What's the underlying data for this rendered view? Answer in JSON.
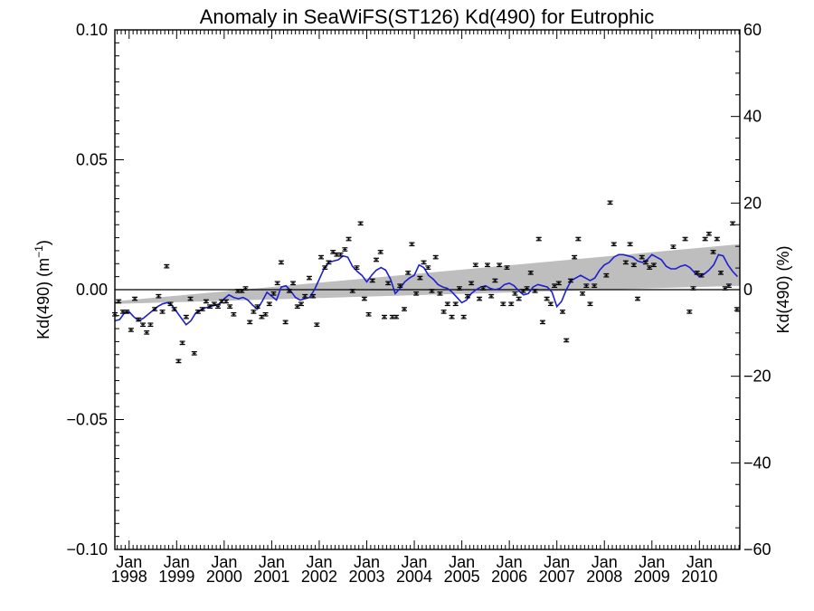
{
  "chart_data": {
    "type": "scatter",
    "title": "Anomaly in SeaWiFS(ST126) Kd(490) for Eutrophic",
    "ylabel_left": "Kd(490) (m",
    "ylabel_left_sup": "−1",
    "ylabel_left_tail": ")",
    "ylabel_right": "Kd(490) (%)",
    "x_range": [
      1997.7,
      2010.85
    ],
    "ylim_left": [
      -0.1,
      0.1
    ],
    "ylim_right": [
      -60,
      60
    ],
    "x_ticks": [
      {
        "year": 1998,
        "month_label": "Jan",
        "year_label": "1998"
      },
      {
        "year": 1999,
        "month_label": "Jan",
        "year_label": "1999"
      },
      {
        "year": 2000,
        "month_label": "Jan",
        "year_label": "2000"
      },
      {
        "year": 2001,
        "month_label": "Jan",
        "year_label": "2001"
      },
      {
        "year": 2002,
        "month_label": "Jan",
        "year_label": "2002"
      },
      {
        "year": 2003,
        "month_label": "Jan",
        "year_label": "2003"
      },
      {
        "year": 2004,
        "month_label": "Jan",
        "year_label": "2004"
      },
      {
        "year": 2005,
        "month_label": "Jan",
        "year_label": "2005"
      },
      {
        "year": 2006,
        "month_label": "Jan",
        "year_label": "2006"
      },
      {
        "year": 2007,
        "month_label": "Jan",
        "year_label": "2007"
      },
      {
        "year": 2008,
        "month_label": "Jan",
        "year_label": "2008"
      },
      {
        "year": 2009,
        "month_label": "Jan",
        "year_label": "2009"
      },
      {
        "year": 2010,
        "month_label": "Jan",
        "year_label": "2010"
      }
    ],
    "y_ticks_left": [
      {
        "value": 0.1,
        "label": "0.10"
      },
      {
        "value": 0.05,
        "label": "0.05"
      },
      {
        "value": 0.0,
        "label": "0.00"
      },
      {
        "value": -0.05,
        "label": "−0.05"
      },
      {
        "value": -0.1,
        "label": "−0.10"
      }
    ],
    "y_ticks_right": [
      {
        "value": 60,
        "label": "60"
      },
      {
        "value": 40,
        "label": "40"
      },
      {
        "value": 20,
        "label": "20"
      },
      {
        "value": 0,
        "label": "0"
      },
      {
        "value": -20,
        "label": "−20"
      },
      {
        "value": -40,
        "label": "−40"
      },
      {
        "value": -60,
        "label": "−60"
      }
    ],
    "trend_band": {
      "x": [
        1997.7,
        2010.85
      ],
      "upper": [
        -0.0045,
        0.0175
      ],
      "lower": [
        -0.0055,
        0.0015
      ],
      "color": "#bebebe"
    },
    "zero_line": 0.0,
    "points": [
      {
        "x": 1997.7,
        "y": -0.0095
      },
      {
        "x": 1997.78,
        "y": -0.0045
      },
      {
        "x": 1997.87,
        "y": -0.0085
      },
      {
        "x": 1997.95,
        "y": -0.0085
      },
      {
        "x": 1998.04,
        "y": -0.0155
      },
      {
        "x": 1998.12,
        "y": -0.0035
      },
      {
        "x": 1998.2,
        "y": -0.0115
      },
      {
        "x": 1998.29,
        "y": -0.0135
      },
      {
        "x": 1998.37,
        "y": -0.0165
      },
      {
        "x": 1998.45,
        "y": -0.0135
      },
      {
        "x": 1998.54,
        "y": -0.0075
      },
      {
        "x": 1998.62,
        "y": -0.0025
      },
      {
        "x": 1998.7,
        "y": -0.0085
      },
      {
        "x": 1998.79,
        "y": 0.009
      },
      {
        "x": 1998.87,
        "y": -0.0055
      },
      {
        "x": 1998.95,
        "y": -0.0075
      },
      {
        "x": 1999.04,
        "y": -0.0275
      },
      {
        "x": 1999.12,
        "y": -0.0205
      },
      {
        "x": 1999.2,
        "y": -0.0105
      },
      {
        "x": 1999.29,
        "y": -0.0035
      },
      {
        "x": 1999.37,
        "y": -0.0245
      },
      {
        "x": 1999.45,
        "y": -0.0085
      },
      {
        "x": 1999.54,
        "y": -0.0075
      },
      {
        "x": 1999.62,
        "y": -0.0045
      },
      {
        "x": 1999.7,
        "y": -0.0065
      },
      {
        "x": 1999.79,
        "y": -0.0055
      },
      {
        "x": 1999.87,
        "y": -0.0065
      },
      {
        "x": 1999.95,
        "y": -0.0045
      },
      {
        "x": 2000.04,
        "y": -0.0045
      },
      {
        "x": 2000.12,
        "y": -0.0065
      },
      {
        "x": 2000.2,
        "y": -0.0095
      },
      {
        "x": 2000.29,
        "y": -0.0005
      },
      {
        "x": 2000.37,
        "y": -0.0005
      },
      {
        "x": 2000.45,
        "y": 0.0005
      },
      {
        "x": 2000.54,
        "y": -0.0125
      },
      {
        "x": 2000.62,
        "y": -0.0085
      },
      {
        "x": 2000.7,
        "y": -0.0065
      },
      {
        "x": 2000.79,
        "y": -0.0105
      },
      {
        "x": 2000.87,
        "y": -0.0095
      },
      {
        "x": 2000.95,
        "y": -0.0055
      },
      {
        "x": 2001.04,
        "y": -0.0015
      },
      {
        "x": 2001.12,
        "y": 0.0025
      },
      {
        "x": 2001.2,
        "y": 0.0105
      },
      {
        "x": 2001.29,
        "y": -0.0125
      },
      {
        "x": 2001.37,
        "y": -0.0005
      },
      {
        "x": 2001.45,
        "y": 0.0025
      },
      {
        "x": 2001.54,
        "y": -0.0065
      },
      {
        "x": 2001.62,
        "y": -0.0055
      },
      {
        "x": 2001.7,
        "y": -0.0025
      },
      {
        "x": 2001.79,
        "y": 0.0045
      },
      {
        "x": 2001.87,
        "y": -0.0025
      },
      {
        "x": 2001.95,
        "y": -0.0135
      },
      {
        "x": 2002.04,
        "y": 0.0125
      },
      {
        "x": 2002.12,
        "y": 0.0085
      },
      {
        "x": 2002.2,
        "y": 0.0105
      },
      {
        "x": 2002.29,
        "y": 0.0145
      },
      {
        "x": 2002.37,
        "y": 0.0135
      },
      {
        "x": 2002.45,
        "y": 0.0135
      },
      {
        "x": 2002.54,
        "y": 0.0155
      },
      {
        "x": 2002.62,
        "y": 0.0195
      },
      {
        "x": 2002.7,
        "y": -0.0005
      },
      {
        "x": 2002.79,
        "y": 0.0085
      },
      {
        "x": 2002.87,
        "y": 0.0255
      },
      {
        "x": 2002.95,
        "y": -0.0035
      },
      {
        "x": 2003.04,
        "y": -0.0095
      },
      {
        "x": 2003.12,
        "y": 0.0035
      },
      {
        "x": 2003.2,
        "y": 0.0115
      },
      {
        "x": 2003.29,
        "y": 0.0145
      },
      {
        "x": 2003.37,
        "y": -0.0105
      },
      {
        "x": 2003.45,
        "y": 0.0025
      },
      {
        "x": 2003.54,
        "y": -0.0105
      },
      {
        "x": 2003.62,
        "y": -0.0105
      },
      {
        "x": 2003.7,
        "y": 0.0015
      },
      {
        "x": 2003.79,
        "y": -0.0075
      },
      {
        "x": 2003.87,
        "y": 0.0065
      },
      {
        "x": 2003.95,
        "y": 0.0175
      },
      {
        "x": 2004.04,
        "y": -0.0015
      },
      {
        "x": 2004.12,
        "y": 0.0045
      },
      {
        "x": 2004.2,
        "y": 0.0105
      },
      {
        "x": 2004.29,
        "y": 0.0085
      },
      {
        "x": 2004.37,
        "y": -0.0005
      },
      {
        "x": 2004.45,
        "y": 0.0125
      },
      {
        "x": 2004.54,
        "y": -0.0015
      },
      {
        "x": 2004.62,
        "y": -0.0085
      },
      {
        "x": 2004.7,
        "y": -0.0055
      },
      {
        "x": 2004.79,
        "y": -0.0105
      },
      {
        "x": 2004.87,
        "y": -0.0055
      },
      {
        "x": 2004.95,
        "y": 0.0005
      },
      {
        "x": 2005.04,
        "y": -0.0105
      },
      {
        "x": 2005.12,
        "y": -0.0025
      },
      {
        "x": 2005.2,
        "y": 0.0025
      },
      {
        "x": 2005.29,
        "y": 0.0095
      },
      {
        "x": 2005.37,
        "y": -0.0035
      },
      {
        "x": 2005.45,
        "y": 0.0005
      },
      {
        "x": 2005.54,
        "y": 0.0095
      },
      {
        "x": 2005.62,
        "y": -0.0025
      },
      {
        "x": 2005.7,
        "y": 0.0035
      },
      {
        "x": 2005.79,
        "y": 0.0095
      },
      {
        "x": 2005.87,
        "y": -0.0055
      },
      {
        "x": 2005.95,
        "y": 0.0085
      },
      {
        "x": 2006.04,
        "y": -0.0055
      },
      {
        "x": 2006.12,
        "y": -0.0015
      },
      {
        "x": 2006.2,
        "y": -0.0035
      },
      {
        "x": 2006.29,
        "y": -0.0005
      },
      {
        "x": 2006.37,
        "y": 0.0005
      },
      {
        "x": 2006.45,
        "y": 0.0065
      },
      {
        "x": 2006.54,
        "y": -0.0005
      },
      {
        "x": 2006.62,
        "y": 0.0195
      },
      {
        "x": 2006.7,
        "y": -0.0125
      },
      {
        "x": 2006.79,
        "y": -0.0035
      },
      {
        "x": 2006.87,
        "y": -0.0055
      },
      {
        "x": 2006.95,
        "y": 0.0015
      },
      {
        "x": 2007.04,
        "y": 0.0025
      },
      {
        "x": 2007.12,
        "y": -0.0085
      },
      {
        "x": 2007.2,
        "y": -0.0195
      },
      {
        "x": 2007.29,
        "y": 0.0035
      },
      {
        "x": 2007.37,
        "y": 0.0125
      },
      {
        "x": 2007.45,
        "y": 0.0195
      },
      {
        "x": 2007.54,
        "y": -0.0015
      },
      {
        "x": 2007.62,
        "y": 0.0015
      },
      {
        "x": 2007.7,
        "y": -0.0055
      },
      {
        "x": 2007.79,
        "y": 0.0015
      },
      {
        "x": 2008.04,
        "y": 0.0055
      },
      {
        "x": 2008.12,
        "y": 0.0335
      },
      {
        "x": 2008.2,
        "y": 0.0175
      },
      {
        "x": 2008.45,
        "y": 0.0105
      },
      {
        "x": 2008.54,
        "y": 0.0175
      },
      {
        "x": 2008.62,
        "y": 0.0095
      },
      {
        "x": 2008.7,
        "y": -0.0035
      },
      {
        "x": 2008.79,
        "y": 0.0125
      },
      {
        "x": 2008.87,
        "y": 0.0105
      },
      {
        "x": 2008.95,
        "y": 0.0085
      },
      {
        "x": 2009.04,
        "y": 0.0095
      },
      {
        "x": 2009.45,
        "y": 0.0165
      },
      {
        "x": 2009.7,
        "y": 0.0195
      },
      {
        "x": 2009.79,
        "y": -0.0085
      },
      {
        "x": 2009.87,
        "y": 0.0005
      },
      {
        "x": 2009.95,
        "y": 0.0065
      },
      {
        "x": 2010.04,
        "y": 0.0055
      },
      {
        "x": 2010.12,
        "y": 0.0195
      },
      {
        "x": 2010.2,
        "y": 0.0215
      },
      {
        "x": 2010.29,
        "y": 0.0145
      },
      {
        "x": 2010.37,
        "y": 0.0195
      },
      {
        "x": 2010.45,
        "y": 0.0065
      },
      {
        "x": 2010.54,
        "y": 0.0005
      },
      {
        "x": 2010.62,
        "y": 0.0015
      },
      {
        "x": 2010.7,
        "y": 0.0255
      },
      {
        "x": 2010.79,
        "y": -0.0075
      }
    ],
    "error_bar_halfwidth": 0.0006,
    "smooth_line": {
      "color": "#1f1fd0",
      "x": [
        1997.7,
        1997.8,
        1997.9,
        1998.0,
        1998.1,
        1998.2,
        1998.3,
        1998.4,
        1998.5,
        1998.6,
        1998.7,
        1998.8,
        1998.9,
        1999.0,
        1999.1,
        1999.2,
        1999.3,
        1999.4,
        1999.5,
        1999.6,
        1999.7,
        1999.8,
        1999.9,
        2000.0,
        2000.1,
        2000.2,
        2000.3,
        2000.4,
        2000.5,
        2000.6,
        2000.7,
        2000.8,
        2000.9,
        2001.0,
        2001.1,
        2001.2,
        2001.3,
        2001.4,
        2001.5,
        2001.6,
        2001.7,
        2001.8,
        2001.9,
        2002.0,
        2002.1,
        2002.2,
        2002.3,
        2002.4,
        2002.5,
        2002.6,
        2002.7,
        2002.8,
        2002.9,
        2003.0,
        2003.1,
        2003.2,
        2003.3,
        2003.4,
        2003.5,
        2003.6,
        2003.7,
        2003.8,
        2003.9,
        2004.0,
        2004.1,
        2004.2,
        2004.3,
        2004.4,
        2004.5,
        2004.6,
        2004.7,
        2004.8,
        2004.9,
        2005.0,
        2005.1,
        2005.2,
        2005.3,
        2005.4,
        2005.5,
        2005.6,
        2005.7,
        2005.8,
        2005.9,
        2006.0,
        2006.1,
        2006.2,
        2006.3,
        2006.4,
        2006.5,
        2006.6,
        2006.7,
        2006.8,
        2006.9,
        2007.0,
        2007.1,
        2007.2,
        2007.3,
        2007.4,
        2007.5,
        2007.6,
        2007.7,
        2007.8,
        2007.9,
        2008.0,
        2008.1,
        2008.2,
        2008.3,
        2008.4,
        2008.5,
        2008.6,
        2008.7,
        2008.8,
        2008.9,
        2009.0,
        2009.1,
        2009.2,
        2009.3,
        2009.4,
        2009.5,
        2009.6,
        2009.7,
        2009.8,
        2009.9,
        2010.0,
        2010.1,
        2010.2,
        2010.3,
        2010.4,
        2010.5,
        2010.6,
        2010.7,
        2010.8
      ],
      "y": [
        -0.012,
        -0.0115,
        -0.009,
        -0.0085,
        -0.0105,
        -0.012,
        -0.011,
        -0.0095,
        -0.008,
        -0.0065,
        -0.0055,
        -0.005,
        -0.006,
        -0.0085,
        -0.011,
        -0.0135,
        -0.012,
        -0.009,
        -0.008,
        -0.007,
        -0.0065,
        -0.006,
        -0.0055,
        -0.0035,
        -0.002,
        -0.003,
        -0.0035,
        -0.003,
        -0.004,
        -0.006,
        -0.0075,
        -0.0045,
        -0.001,
        -0.0025,
        -0.004,
        0.001,
        0.0015,
        -0.0005,
        -0.003,
        -0.004,
        -0.0035,
        -0.003,
        0.0,
        0.004,
        0.008,
        0.0105,
        0.011,
        0.0115,
        0.013,
        0.0125,
        0.009,
        0.007,
        0.0055,
        0.003,
        0.0055,
        0.0075,
        0.0085,
        0.0075,
        0.004,
        -0.0015,
        0.0005,
        0.003,
        0.0045,
        0.0055,
        0.0095,
        0.0085,
        0.0055,
        0.004,
        0.002,
        0.001,
        0.0005,
        -0.001,
        -0.003,
        -0.005,
        -0.004,
        -0.0015,
        0.0,
        0.001,
        0.0015,
        0.0005,
        0.0,
        0.0005,
        0.002,
        0.0025,
        0.0015,
        -0.0005,
        -0.002,
        -0.0015,
        0.001,
        0.002,
        0.0015,
        0.001,
        -0.001,
        -0.0065,
        -0.0045,
        0.0,
        0.0035,
        0.0045,
        0.0055,
        0.0045,
        0.0035,
        0.0045,
        0.0075,
        0.0095,
        0.0105,
        0.0125,
        0.0135,
        0.0135,
        0.013,
        0.0125,
        0.011,
        0.0105,
        0.0115,
        0.0135,
        0.0125,
        0.0115,
        0.009,
        0.008,
        0.008,
        0.009,
        0.0095,
        0.0085,
        0.0065,
        0.005,
        0.006,
        0.0075,
        0.0095,
        0.0135,
        0.013,
        0.0095,
        0.007,
        0.005
      ]
    }
  }
}
